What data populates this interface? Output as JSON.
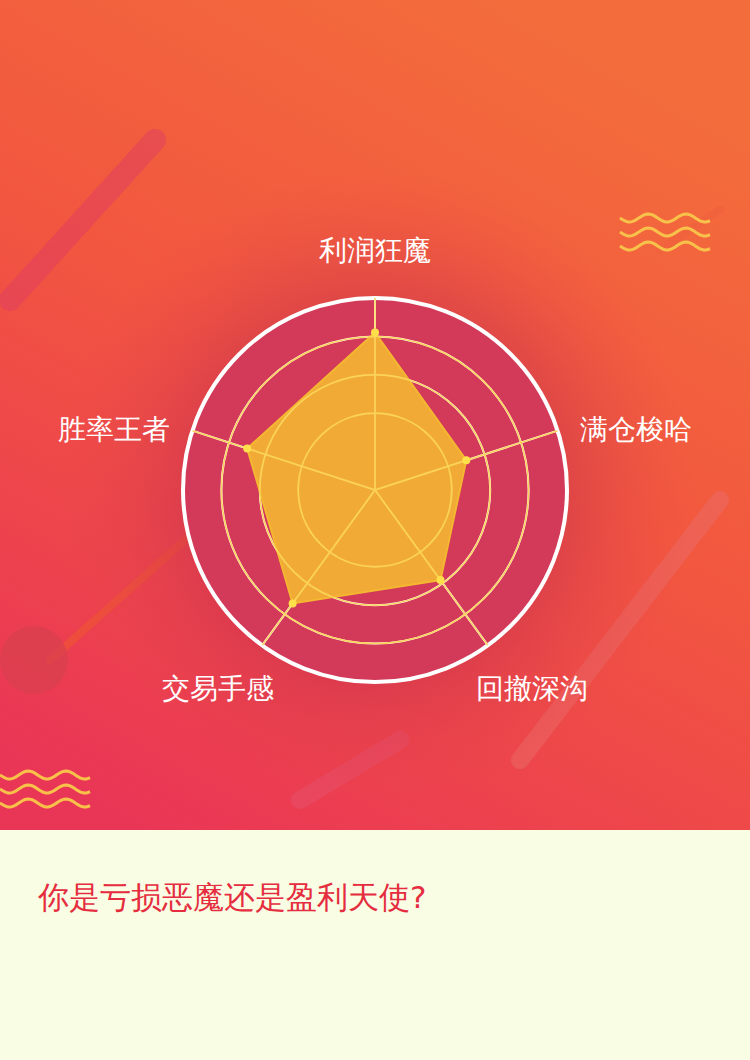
{
  "chart_data": {
    "type": "radar",
    "categories": [
      "利润狂魔",
      "满仓梭哈",
      "回撤深沟",
      "交易手感",
      "胜率王者"
    ],
    "values": [
      82,
      50,
      58,
      73,
      70
    ],
    "color": "#f4b731",
    "ylim": [
      0,
      100
    ],
    "yticks": [
      40,
      60,
      80,
      100
    ],
    "grid": true,
    "tick_labels": false
  },
  "footer": {
    "text": "你是亏损恶魔还是盈利天使?"
  }
}
